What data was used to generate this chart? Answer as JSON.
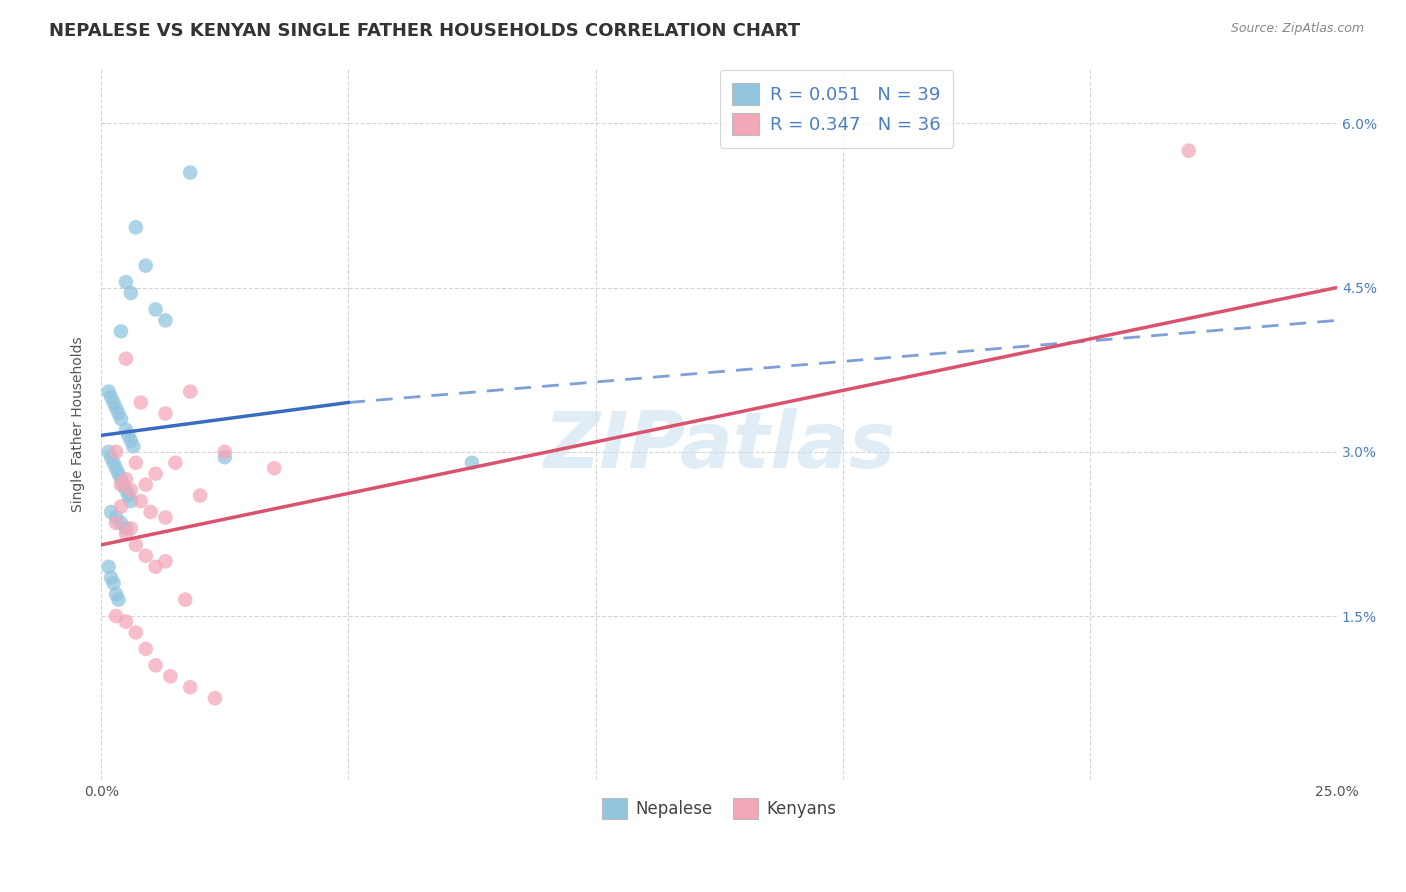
{
  "title": "NEPALESE VS KENYAN SINGLE FATHER HOUSEHOLDS CORRELATION CHART",
  "source": "Source: ZipAtlas.com",
  "ylabel": "Single Father Households",
  "xlim": [
    0.0,
    25.0
  ],
  "ylim": [
    0.0,
    6.5
  ],
  "yticks": [
    0.0,
    1.5,
    3.0,
    4.5,
    6.0
  ],
  "ytick_labels_right": [
    "",
    "1.5%",
    "3.0%",
    "4.5%",
    "6.0%"
  ],
  "xticks": [
    0.0,
    5.0,
    10.0,
    15.0,
    20.0,
    25.0
  ],
  "xtick_labels": [
    "0.0%",
    "",
    "",
    "",
    "",
    "25.0%"
  ],
  "nepalese_color": "#92c5de",
  "kenyan_color": "#f4a7b9",
  "nepalese_line_color": "#3a6dbf",
  "kenyan_line_color": "#d9536e",
  "watermark_text": "ZIPatlas",
  "legend_text_1": "R = 0.051   N = 39",
  "legend_text_2": "R = 0.347   N = 36",
  "legend_label_1": "Nepalese",
  "legend_label_2": "Kenyans",
  "background_color": "#ffffff",
  "grid_color": "#cccccc",
  "title_fontsize": 13,
  "axis_label_fontsize": 10,
  "tick_fontsize": 10,
  "legend_fontsize": 13,
  "nepalese_x": [
    1.8,
    0.7,
    0.9,
    0.5,
    0.6,
    1.1,
    1.3,
    0.4,
    0.15,
    0.2,
    0.25,
    0.3,
    0.35,
    0.4,
    0.5,
    0.55,
    0.6,
    0.65,
    0.15,
    0.2,
    0.25,
    0.3,
    0.35,
    0.4,
    0.45,
    0.5,
    0.55,
    0.6,
    2.5,
    7.5,
    0.2,
    0.3,
    0.4,
    0.5,
    0.15,
    0.2,
    0.25,
    0.3,
    0.35
  ],
  "nepalese_y": [
    5.55,
    5.05,
    4.7,
    4.55,
    4.45,
    4.3,
    4.2,
    4.1,
    3.55,
    3.5,
    3.45,
    3.4,
    3.35,
    3.3,
    3.2,
    3.15,
    3.1,
    3.05,
    3.0,
    2.95,
    2.9,
    2.85,
    2.8,
    2.75,
    2.7,
    2.65,
    2.6,
    2.55,
    2.95,
    2.9,
    2.45,
    2.4,
    2.35,
    2.3,
    1.95,
    1.85,
    1.8,
    1.7,
    1.65
  ],
  "kenyan_x": [
    22.0,
    0.5,
    1.8,
    0.8,
    1.3,
    2.5,
    3.5,
    0.3,
    0.7,
    1.1,
    0.5,
    0.9,
    1.5,
    2.0,
    0.4,
    0.6,
    0.8,
    1.0,
    1.3,
    0.3,
    0.5,
    0.7,
    0.9,
    1.1,
    1.3,
    1.7,
    0.3,
    0.5,
    0.7,
    0.9,
    1.1,
    1.4,
    1.8,
    2.3,
    0.4,
    0.6
  ],
  "kenyan_y": [
    5.75,
    3.85,
    3.55,
    3.45,
    3.35,
    3.0,
    2.85,
    3.0,
    2.9,
    2.8,
    2.75,
    2.7,
    2.9,
    2.6,
    2.7,
    2.65,
    2.55,
    2.45,
    2.4,
    2.35,
    2.25,
    2.15,
    2.05,
    1.95,
    2.0,
    1.65,
    1.5,
    1.45,
    1.35,
    1.2,
    1.05,
    0.95,
    0.85,
    0.75,
    2.5,
    2.3
  ],
  "blue_line_x_start": 0.0,
  "blue_line_x_solid_end": 5.0,
  "blue_line_x_end": 25.0,
  "blue_line_y_start": 3.15,
  "blue_line_y_solid_end": 3.45,
  "blue_line_y_end": 4.2,
  "pink_line_x_start": 0.0,
  "pink_line_x_end": 25.0,
  "pink_line_y_start": 2.15,
  "pink_line_y_end": 4.5
}
